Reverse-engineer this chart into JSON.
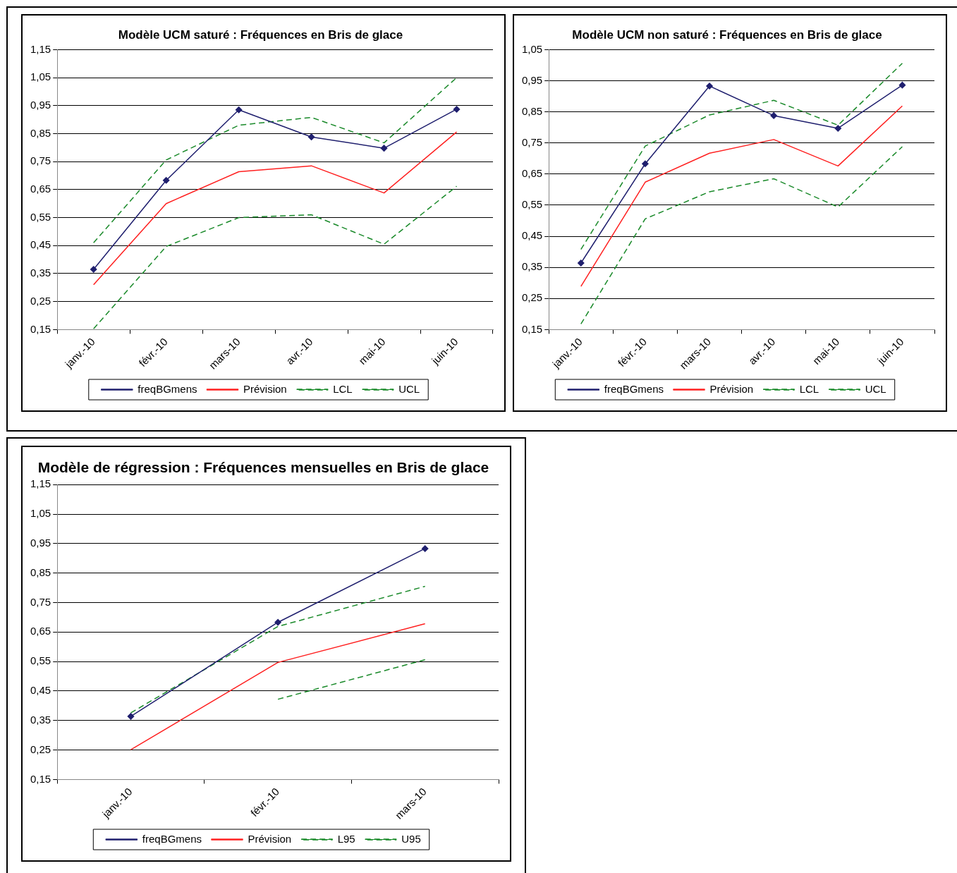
{
  "chart_data": [
    {
      "type": "line",
      "title": "Modèle UCM saturé : Fréquences en Bris de glace",
      "categories": [
        "janv.-10",
        "févr.-10",
        "mars-10",
        "avr.-10",
        "mai-10",
        "juin-10"
      ],
      "ylim": [
        0.15,
        1.15
      ],
      "yticks": [
        {
          "value": 0.15,
          "label": "0,15"
        },
        {
          "value": 0.25,
          "label": "0,25"
        },
        {
          "value": 0.35,
          "label": "0,35"
        },
        {
          "value": 0.45,
          "label": "0,45"
        },
        {
          "value": 0.55,
          "label": "0,55"
        },
        {
          "value": 0.65,
          "label": "0,65"
        },
        {
          "value": 0.75,
          "label": "0,75"
        },
        {
          "value": 0.85,
          "label": "0,85"
        },
        {
          "value": 0.95,
          "label": "0,95"
        },
        {
          "value": 1.05,
          "label": "1,05"
        },
        {
          "value": 1.15,
          "label": "1,15"
        }
      ],
      "grid": "y",
      "legend": "bottom",
      "series": [
        {
          "name": "freqBGmens",
          "color": "#1f1f6e",
          "marker": "diamond",
          "line_style": "solid",
          "values": [
            0.365,
            0.683,
            0.935,
            0.838,
            0.798,
            0.937
          ]
        },
        {
          "name": "Prévision",
          "color": "#ff2020",
          "marker": "none",
          "line_style": "solid",
          "values": [
            0.31,
            0.6,
            0.714,
            0.735,
            0.638,
            0.856
          ]
        },
        {
          "name": "LCL",
          "color": "#1a8a2a",
          "marker": "none",
          "line_style": "dashed",
          "values": [
            0.153,
            0.447,
            0.55,
            0.56,
            0.455,
            0.662
          ]
        },
        {
          "name": "UCL",
          "color": "#1a8a2a",
          "marker": "none",
          "line_style": "dashed",
          "values": [
            0.46,
            0.756,
            0.88,
            0.908,
            0.817,
            1.05
          ]
        }
      ]
    },
    {
      "type": "line",
      "title": "Modèle UCM non saturé : Fréquences en Bris de glace",
      "categories": [
        "janv.-10",
        "févr.-10",
        "mars-10",
        "avr.-10",
        "mai-10",
        "juin-10"
      ],
      "ylim": [
        0.15,
        1.05
      ],
      "yticks": [
        {
          "value": 0.15,
          "label": "0,15"
        },
        {
          "value": 0.25,
          "label": "0,25"
        },
        {
          "value": 0.35,
          "label": "0,35"
        },
        {
          "value": 0.45,
          "label": "0,45"
        },
        {
          "value": 0.55,
          "label": "0,55"
        },
        {
          "value": 0.65,
          "label": "0,65"
        },
        {
          "value": 0.75,
          "label": "0,75"
        },
        {
          "value": 0.85,
          "label": "0,85"
        },
        {
          "value": 0.95,
          "label": "0,95"
        },
        {
          "value": 1.05,
          "label": "1,05"
        }
      ],
      "grid": "y",
      "legend": "bottom",
      "series": [
        {
          "name": "freqBGmens",
          "color": "#1f1f6e",
          "marker": "diamond",
          "line_style": "solid",
          "values": [
            0.364,
            0.683,
            0.933,
            0.838,
            0.797,
            0.936
          ]
        },
        {
          "name": "Prévision",
          "color": "#ff2020",
          "marker": "none",
          "line_style": "solid",
          "values": [
            0.289,
            0.624,
            0.717,
            0.761,
            0.676,
            0.869
          ]
        },
        {
          "name": "LCL",
          "color": "#1a8a2a",
          "marker": "none",
          "line_style": "dashed",
          "values": [
            0.168,
            0.506,
            0.593,
            0.635,
            0.544,
            0.738
          ]
        },
        {
          "name": "UCL",
          "color": "#1a8a2a",
          "marker": "none",
          "line_style": "dashed",
          "values": [
            0.408,
            0.74,
            0.84,
            0.887,
            0.807,
            1.006
          ]
        }
      ]
    },
    {
      "type": "line",
      "title": "Modèle de régression : Fréquences mensuelles en Bris de glace",
      "categories": [
        "janv.-10",
        "févr.-10",
        "mars-10"
      ],
      "ylim": [
        0.15,
        1.15
      ],
      "yticks": [
        {
          "value": 0.15,
          "label": "0,15"
        },
        {
          "value": 0.25,
          "label": "0,25"
        },
        {
          "value": 0.35,
          "label": "0,35"
        },
        {
          "value": 0.45,
          "label": "0,45"
        },
        {
          "value": 0.55,
          "label": "0,55"
        },
        {
          "value": 0.65,
          "label": "0,65"
        },
        {
          "value": 0.75,
          "label": "0,75"
        },
        {
          "value": 0.85,
          "label": "0,85"
        },
        {
          "value": 0.95,
          "label": "0,95"
        },
        {
          "value": 1.05,
          "label": "1,05"
        },
        {
          "value": 1.15,
          "label": "1,15"
        }
      ],
      "grid": "y",
      "legend": "bottom",
      "series": [
        {
          "name": "freqBGmens",
          "color": "#1f1f6e",
          "marker": "diamond",
          "line_style": "solid",
          "values": [
            0.364,
            0.683,
            0.933
          ]
        },
        {
          "name": "Prévision",
          "color": "#ff2020",
          "marker": "none",
          "line_style": "solid",
          "values": [
            0.251,
            0.547,
            0.678
          ]
        },
        {
          "name": "L95",
          "color": "#1a8a2a",
          "marker": "none",
          "line_style": "dashed",
          "values": [
            null,
            0.422,
            0.556
          ]
        },
        {
          "name": "U95",
          "color": "#1a8a2a",
          "marker": "none",
          "line_style": "dashed",
          "values": [
            0.376,
            0.669,
            0.805
          ]
        }
      ]
    }
  ]
}
